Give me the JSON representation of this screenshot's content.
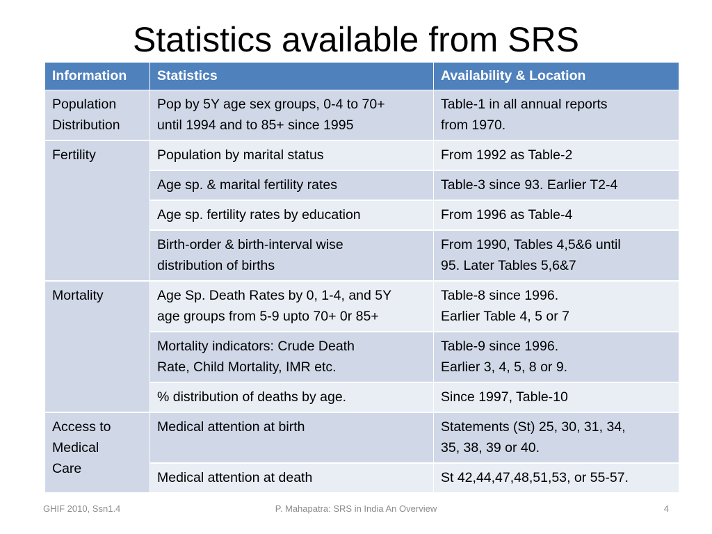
{
  "slide": {
    "title": "Statistics available from SRS"
  },
  "table": {
    "headers": {
      "information": "Information",
      "statistics": "Statistics",
      "availability": "Availability & Location"
    },
    "groups": [
      {
        "category": "Population\nDistribution",
        "rows": [
          {
            "statistics": "Pop by 5Y age sex groups, 0-4 to 70+\nuntil 1994 and to 85+ since 1995",
            "availability": "Table-1 in all annual reports\nfrom 1970."
          }
        ]
      },
      {
        "category": "Fertility",
        "rows": [
          {
            "statistics": "Population by marital status",
            "availability": "From 1992 as Table-2"
          },
          {
            "statistics": "Age sp. & marital fertility rates",
            "availability": "Table-3 since 93. Earlier T2-4"
          },
          {
            "statistics": "Age sp. fertility rates by education",
            "availability": "From 1996 as Table-4"
          },
          {
            "statistics": "Birth-order & birth-interval wise\ndistribution of births",
            "availability": "From 1990, Tables 4,5&6 until\n95. Later Tables 5,6&7"
          }
        ]
      },
      {
        "category": "Mortality",
        "rows": [
          {
            "statistics": "Age Sp. Death Rates by 0, 1-4, and 5Y\nage groups from 5-9 upto 70+ 0r 85+",
            "availability": "Table-8 since 1996.\nEarlier Table 4, 5 or 7"
          },
          {
            "statistics": "Mortality indicators: Crude Death\nRate, Child Mortality, IMR etc.",
            "availability": "Table-9 since 1996.\nEarlier 3, 4, 5, 8 or 9."
          },
          {
            "statistics": "% distribution of deaths by age.",
            "availability": "Since 1997, Table-10"
          }
        ]
      },
      {
        "category": "Access to\nMedical\nCare",
        "rows": [
          {
            "statistics": "Medical attention at birth",
            "availability": "Statements (St) 25, 30, 31, 34,\n35, 38, 39 or 40."
          },
          {
            "statistics": "Medical attention at death",
            "availability": "St 42,44,47,48,51,53, or 55-57."
          }
        ]
      }
    ]
  },
  "footer": {
    "left": "GHIF 2010, Ssn1.4",
    "center": "P. Mahapatra: SRS in India An Overview",
    "right": "4"
  },
  "colors": {
    "header_bg": "#4f81bd",
    "row_dark": "#d0d8e8",
    "row_light": "#e9edf4",
    "footer_text": "#8b8b8b"
  }
}
